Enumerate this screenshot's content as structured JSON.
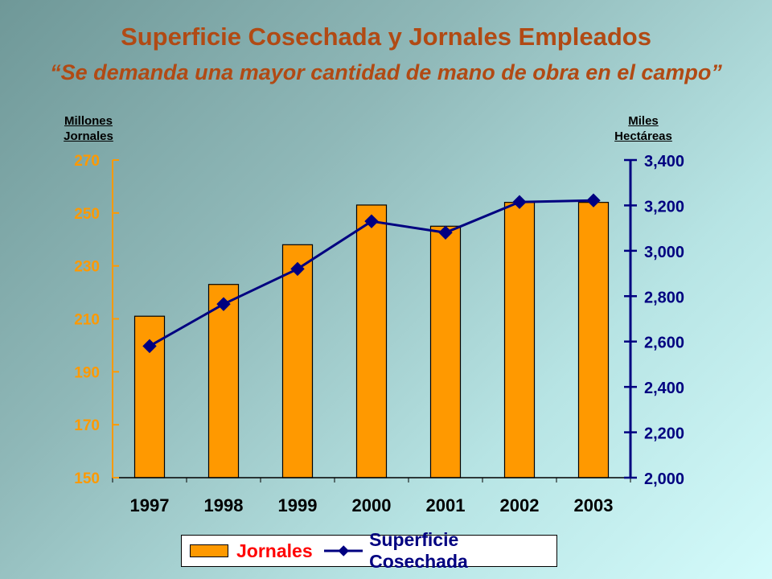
{
  "chart_data": {
    "type": "bar+line",
    "title": "Superficie Cosechada y Jornales Empleados",
    "subtitle": "“Se demanda una mayor cantidad de mano de obra en el campo”",
    "categories": [
      "1997",
      "1998",
      "1999",
      "2000",
      "2001",
      "2002",
      "2003"
    ],
    "left_axis": {
      "unit_line1": "Millones",
      "unit_line2": "Jornales",
      "range": [
        150,
        270
      ],
      "ticks": [
        "150",
        "170",
        "190",
        "210",
        "230",
        "250",
        "270"
      ],
      "color": "#ff9900"
    },
    "right_axis": {
      "unit_line1": "Miles",
      "unit_line2": "Hectáreas",
      "range": [
        2000,
        3400
      ],
      "ticks": [
        "2,000",
        "2,200",
        "2,400",
        "2,600",
        "2,800",
        "3,000",
        "3,200",
        "3,400"
      ],
      "color": "#000080"
    },
    "series": [
      {
        "name": "Jornales",
        "type": "bar",
        "axis": "left",
        "color": "#ff9900",
        "values": [
          211,
          223,
          238,
          253,
          245,
          254,
          254
        ]
      },
      {
        "name": "Superficie Cosechada",
        "type": "line",
        "axis": "right",
        "color": "#000080",
        "values": [
          2580,
          2765,
          2920,
          3130,
          3080,
          3215,
          3222
        ]
      }
    ],
    "legend_position": "bottom",
    "grid": false
  }
}
